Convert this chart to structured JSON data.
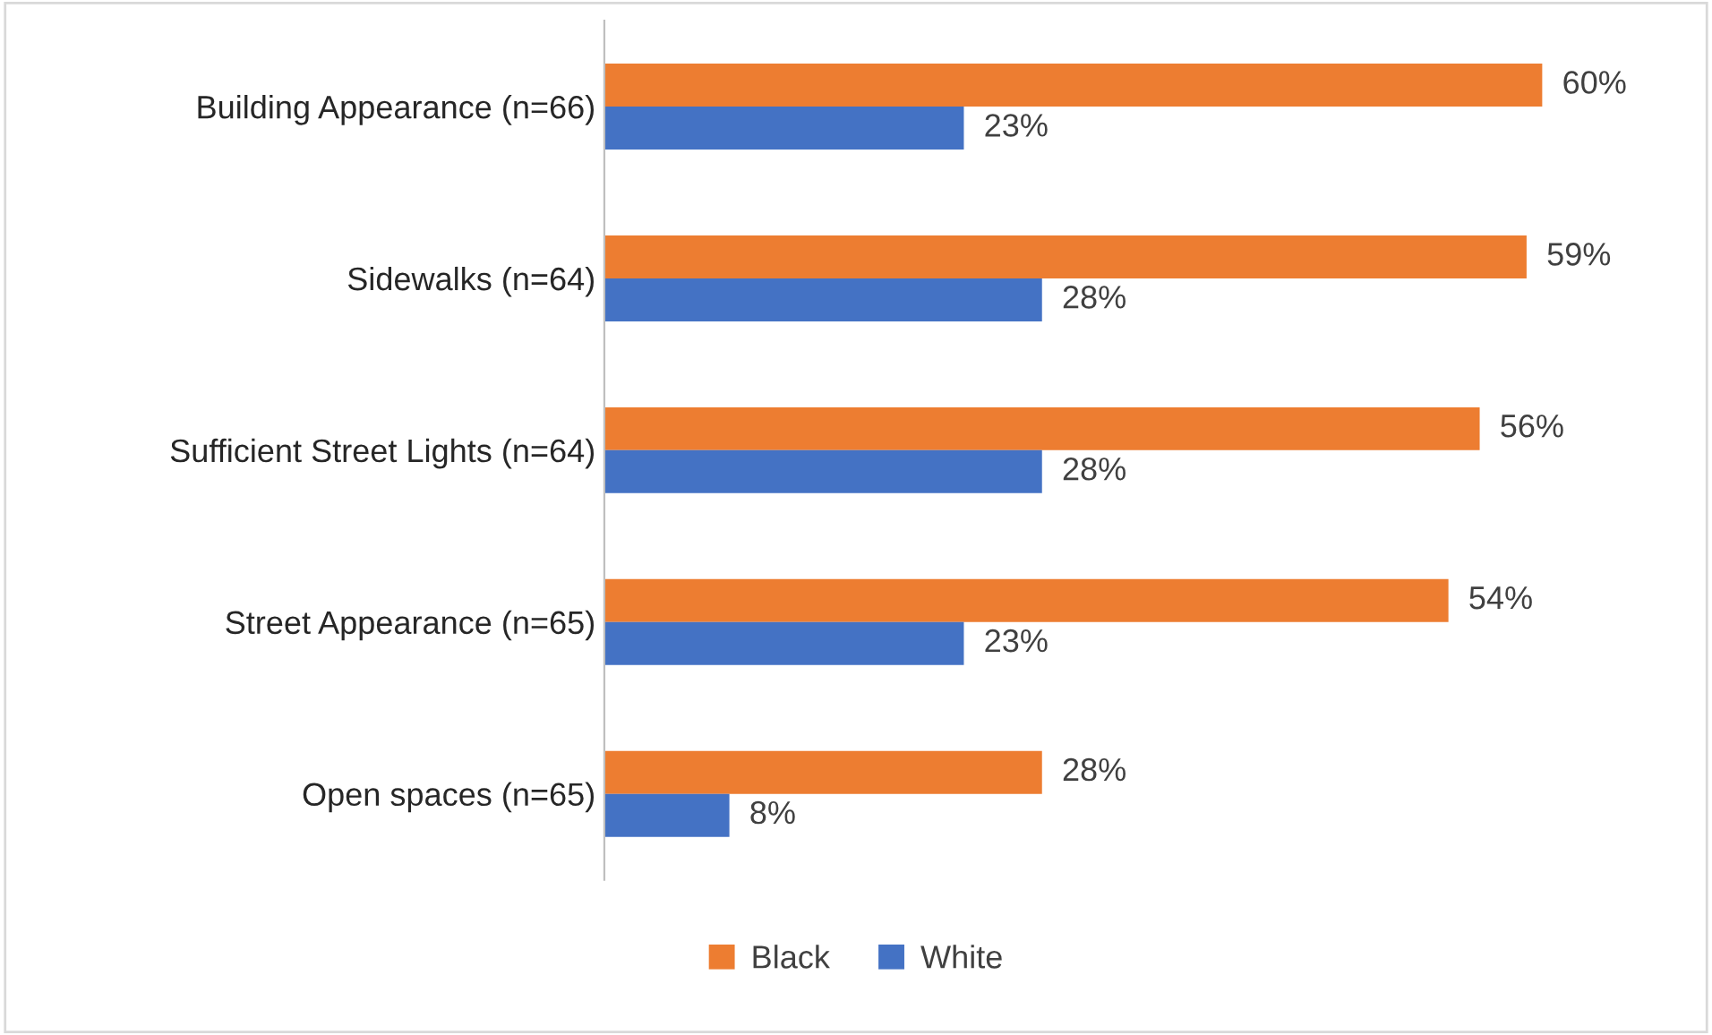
{
  "chart_data": {
    "type": "bar",
    "orientation": "horizontal",
    "categories": [
      "Building Appearance (n=66)",
      "Sidewalks (n=64)",
      "Sufficient Street Lights (n=64)",
      "Street Appearance (n=65)",
      "Open spaces (n=65)"
    ],
    "series": [
      {
        "name": "Black",
        "color": "#ed7d31",
        "values": [
          60,
          59,
          56,
          54,
          28
        ],
        "value_labels": [
          "60%",
          "59%",
          "56%",
          "54%",
          "28%"
        ]
      },
      {
        "name": "White",
        "color": "#4472c4",
        "values": [
          23,
          28,
          28,
          23,
          8
        ],
        "value_labels": [
          "23%",
          "28%",
          "28%",
          "23%",
          "8%"
        ]
      }
    ],
    "legend": "bottom",
    "grid": false,
    "tick_labels": "y"
  }
}
